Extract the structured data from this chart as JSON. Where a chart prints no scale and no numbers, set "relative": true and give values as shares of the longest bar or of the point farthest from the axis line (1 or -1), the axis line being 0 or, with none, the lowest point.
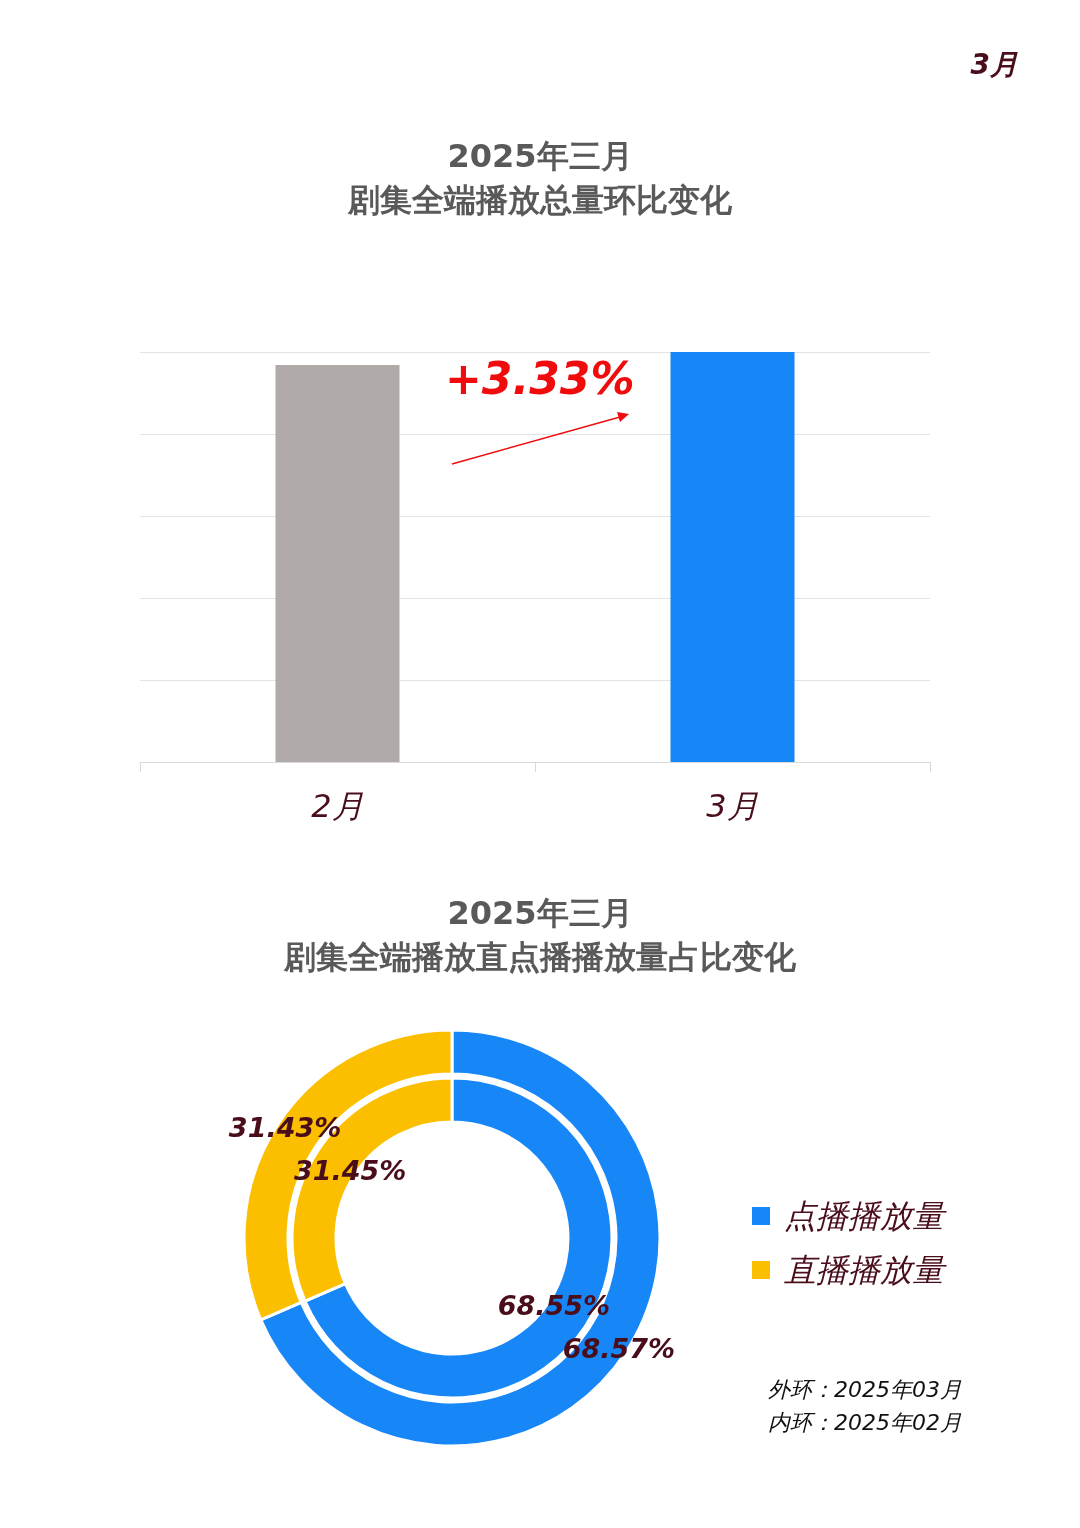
{
  "chart_data": [
    {
      "type": "bar",
      "title": "2025年三月",
      "subtitle": "剧集全端播放总量环比变化",
      "categories": [
        "2月",
        "3月"
      ],
      "values": [
        0.968,
        1
      ],
      "colors": [
        "#b0aaa9",
        "#1787f7"
      ],
      "relative": true,
      "grid": "y",
      "annotations": [
        "3月",
        "+3.33%"
      ]
    },
    {
      "type": "donut",
      "title": "2025年三月",
      "subtitle": "剧集全端播放直点播播放量占比变化",
      "categories": [
        "点播播放量",
        "直播播放量"
      ],
      "legend": "right",
      "series": [
        {
          "values": [
            68.57,
            31.43
          ],
          "colors": [
            "#1787f7",
            "#fbbf00"
          ],
          "value_labels": [
            "68.57%",
            "31.43%"
          ]
        },
        {
          "values": [
            68.55,
            31.45
          ],
          "colors": [
            "#1787f7",
            "#fbbf00"
          ],
          "value_labels": [
            "68.55%",
            "31.45%"
          ]
        }
      ],
      "annotations": [
        "外环：2025年03月",
        "内环：2025年02月"
      ]
    }
  ]
}
